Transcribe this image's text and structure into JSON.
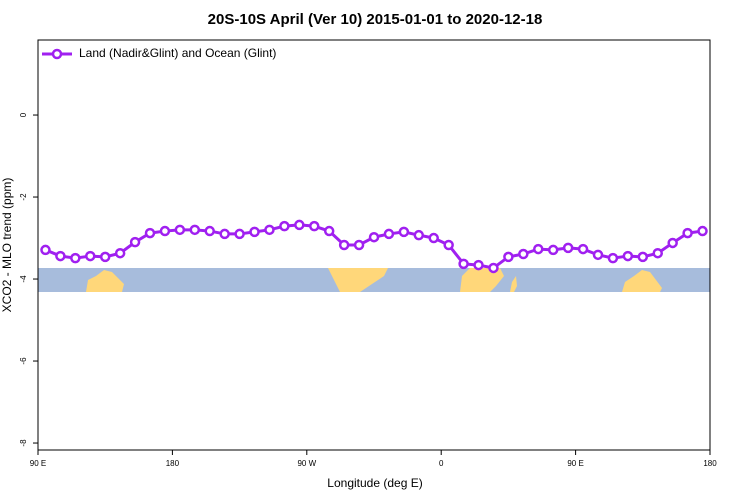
{
  "chart_data": {
    "type": "line",
    "title": "20S-10S April (Ver 10)   2015-01-01 to 2020-12-18",
    "xlabel": "Longitude (deg E)",
    "ylabel": "XCO2 - MLO trend (ppm)",
    "x": [
      95,
      105,
      115,
      125,
      135,
      145,
      155,
      165,
      175,
      185,
      195,
      205,
      215,
      225,
      235,
      245,
      255,
      265,
      275,
      285,
      295,
      305,
      315,
      325,
      335,
      345,
      355,
      365,
      375,
      385,
      395,
      405,
      415,
      425,
      435,
      445,
      455,
      465,
      475,
      485,
      495,
      505,
      515,
      525,
      535
    ],
    "series": [
      {
        "name": "Land (Nadir&Glint) and Ocean (Glint)",
        "color": "#a020f0",
        "values": [
          -3.29,
          -3.44,
          -3.49,
          -3.44,
          -3.46,
          -3.37,
          -3.1,
          -2.88,
          -2.83,
          -2.8,
          -2.8,
          -2.83,
          -2.9,
          -2.9,
          -2.85,
          -2.8,
          -2.71,
          -2.68,
          -2.71,
          -2.83,
          -3.17,
          -3.17,
          -2.98,
          -2.9,
          -2.85,
          -2.93,
          -3.0,
          -3.17,
          -3.63,
          -3.66,
          -3.73,
          -3.46,
          -3.39,
          -3.27,
          -3.29,
          -3.24,
          -3.27,
          -3.41,
          -3.49,
          -3.44,
          -3.46,
          -3.37,
          -3.12,
          -2.88,
          -2.83
        ]
      }
    ],
    "xlim": [
      90,
      540
    ],
    "xticks": [
      {
        "value": 90,
        "label": "90 E"
      },
      {
        "value": 180,
        "label": "180"
      },
      {
        "value": 270,
        "label": "90 W"
      },
      {
        "value": 360,
        "label": "0"
      },
      {
        "value": 450,
        "label": "90 E"
      },
      {
        "value": 540,
        "label": "180"
      }
    ],
    "ylim": [
      -8.17,
      1.83
    ],
    "yticks": [
      0,
      -2,
      -4,
      -6,
      -8
    ],
    "legend": "top-left"
  }
}
